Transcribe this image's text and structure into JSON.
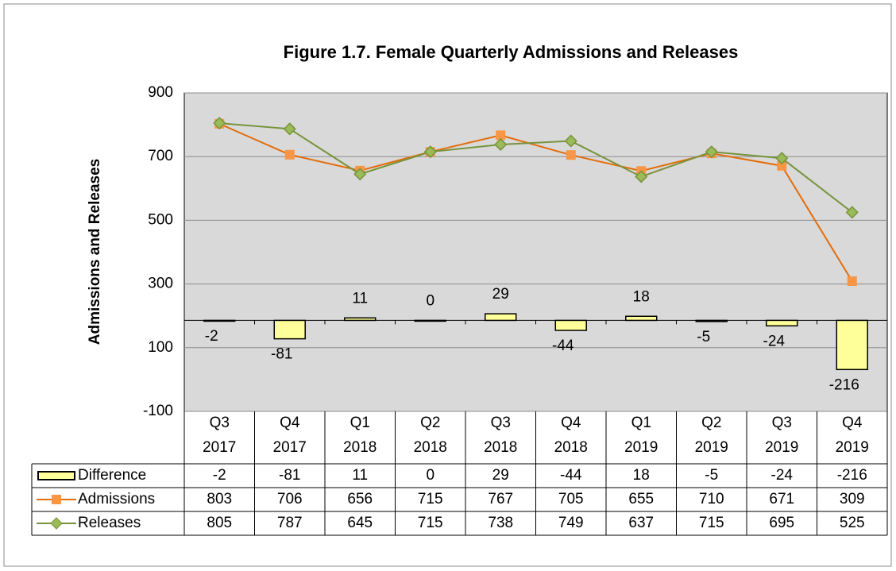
{
  "chart_data": {
    "type": "line-bar",
    "title": "Figure 1.7. Female Quarterly Admissions and Releases",
    "ylabel": "Admissions and Releases",
    "categories": [
      [
        "Q3",
        "2017"
      ],
      [
        "Q4",
        "2017"
      ],
      [
        "Q1",
        "2018"
      ],
      [
        "Q2",
        "2018"
      ],
      [
        "Q3",
        "2018"
      ],
      [
        "Q4",
        "2018"
      ],
      [
        "Q1",
        "2019"
      ],
      [
        "Q2",
        "2019"
      ],
      [
        "Q3",
        "2019"
      ],
      [
        "Q4",
        "2019"
      ]
    ],
    "ylim": [
      -100,
      900
    ],
    "yticks": [
      900,
      700,
      500,
      300,
      100,
      -100
    ],
    "y2lim": [
      -400,
      1000
    ],
    "grid": true,
    "series": [
      {
        "name": "Difference",
        "type": "bar",
        "axis": "y2",
        "color": "#ffff99",
        "values": [
          -2,
          -81,
          11,
          0,
          29,
          -44,
          18,
          -5,
          -24,
          -216
        ]
      },
      {
        "name": "Admissions",
        "type": "line",
        "marker": "square",
        "color": "#f79646",
        "values": [
          803,
          706,
          656,
          715,
          767,
          705,
          655,
          710,
          671,
          309
        ]
      },
      {
        "name": "Releases",
        "type": "line",
        "marker": "diamond",
        "color": "#77933c",
        "values": [
          805,
          787,
          645,
          715,
          738,
          749,
          637,
          715,
          695,
          525
        ]
      }
    ]
  }
}
